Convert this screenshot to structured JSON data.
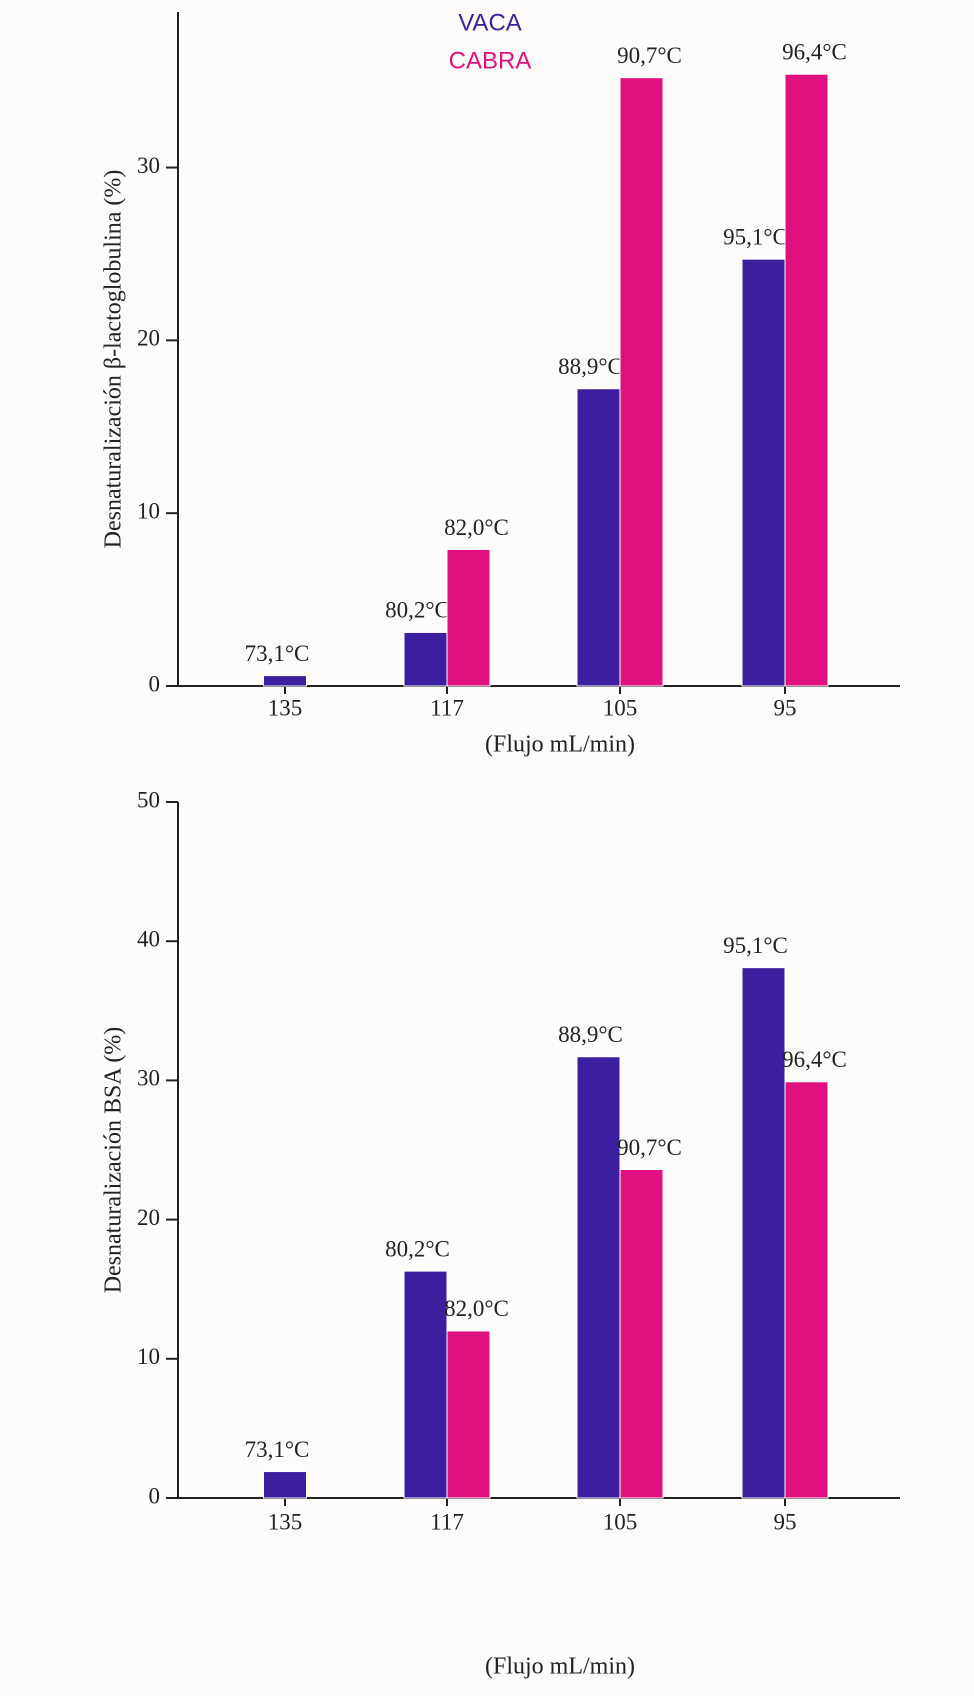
{
  "chart_data": [
    {
      "type": "bar",
      "ylabel": "Desnaturalización β-lactoglobulina (%)",
      "xlabel": "(Flujo mL/min)",
      "categories": [
        "135",
        "117",
        "105",
        "95"
      ],
      "series": [
        {
          "name": "VACA",
          "color": "#3b1f9e",
          "values": [
            0.6,
            3.1,
            17.2,
            24.7
          ],
          "labels": [
            "73,1°C",
            "80,2°C",
            "88,9°C",
            "95,1°C"
          ]
        },
        {
          "name": "CABRA",
          "color": "#e0117f",
          "values": [
            null,
            7.9,
            35.2,
            35.4
          ],
          "labels": [
            null,
            "82,0°C",
            "90,7°C",
            "96,4°C"
          ]
        }
      ],
      "ylim": [
        0,
        39
      ],
      "yticks": [
        0,
        10,
        20,
        30
      ],
      "legend": "top"
    },
    {
      "type": "bar",
      "ylabel": "Desnaturalización BSA (%)",
      "xlabel": "(Flujo mL/min)",
      "categories": [
        "135",
        "117",
        "105",
        "95"
      ],
      "series": [
        {
          "color": "#3b1f9e",
          "values": [
            1.9,
            16.3,
            31.7,
            38.1
          ],
          "labels": [
            "73,1°C",
            "80,2°C",
            "88,9°C",
            "95,1°C"
          ]
        },
        {
          "color": "#e0117f",
          "values": [
            null,
            12.0,
            23.6,
            29.9
          ],
          "labels": [
            null,
            "82,0°C",
            "90,7°C",
            "96,4°C"
          ]
        }
      ],
      "ylim": [
        0,
        50
      ],
      "yticks": [
        0,
        10,
        20,
        30,
        40,
        50
      ]
    }
  ]
}
